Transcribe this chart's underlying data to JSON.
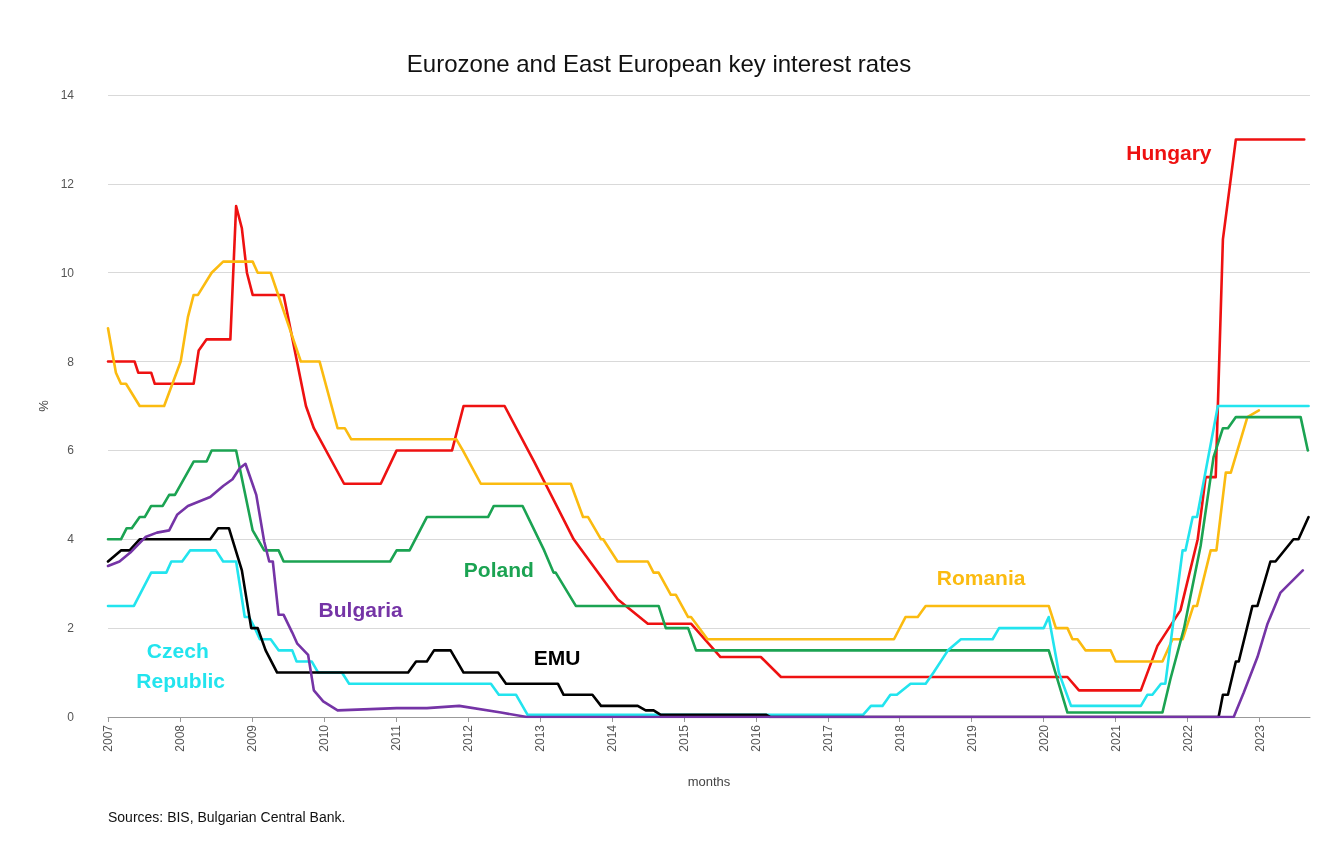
{
  "chart_data": {
    "type": "line",
    "title": "Eurozone and East European key interest rates",
    "xlabel": "months",
    "ylabel": "%",
    "xlim": [
      2007,
      2023.7
    ],
    "xticks": [
      2007,
      2008,
      2009,
      2010,
      2011,
      2012,
      2013,
      2014,
      2015,
      2016,
      2017,
      2018,
      2019,
      2020,
      2021,
      2022,
      2023
    ],
    "ylim": [
      0,
      14
    ],
    "yticks": [
      0,
      2,
      4,
      6,
      8,
      10,
      12,
      14
    ],
    "grid": "y",
    "legend": false,
    "marker": "none",
    "line_style": "solid",
    "annotations": [
      "Sources: BIS, Bulgarian Central Bank."
    ],
    "series": [
      {
        "name": "Hungary",
        "color": "#ee1111",
        "x": [
          2007.0,
          2007.37,
          2007.42,
          2007.6,
          2007.65,
          2008.19,
          2008.26,
          2008.37,
          2008.7,
          2008.78,
          2008.86,
          2008.93,
          2009.01,
          2009.44,
          2009.75,
          2009.86,
          2010.28,
          2010.79,
          2011.01,
          2011.78,
          2011.94,
          2012.51,
          2012.92,
          2013.47,
          2014.08,
          2014.5,
          2015.1,
          2015.51,
          2016.07,
          2016.35,
          2020.33,
          2020.49,
          2021.35,
          2021.58,
          2021.9,
          2022.14,
          2022.25,
          2022.39,
          2022.49,
          2022.67,
          2023.62
        ],
        "values": [
          8,
          8,
          7.75,
          7.75,
          7.5,
          7.5,
          8.25,
          8.5,
          8.5,
          11.5,
          11,
          10,
          9.5,
          9.5,
          7,
          6.5,
          5.25,
          5.25,
          6,
          6,
          7,
          7,
          5.75,
          4,
          2.65,
          2.1,
          2.1,
          1.35,
          1.35,
          0.9,
          0.9,
          0.6,
          0.6,
          1.6,
          2.4,
          4,
          5.4,
          5.4,
          10.75,
          13,
          13
        ]
      },
      {
        "name": "Romania",
        "color": "#fbbb10",
        "x": [
          2007.0,
          2007.11,
          2007.18,
          2007.25,
          2007.44,
          2007.78,
          2008.01,
          2008.11,
          2008.19,
          2008.25,
          2008.44,
          2008.6,
          2009.01,
          2009.08,
          2009.26,
          2009.68,
          2009.94,
          2010.19,
          2010.29,
          2010.38,
          2011.84,
          2011.93,
          2012.18,
          2013.43,
          2013.6,
          2013.67,
          2013.85,
          2013.88,
          2014.08,
          2014.5,
          2014.58,
          2014.65,
          2014.82,
          2014.89,
          2015.06,
          2015.1,
          2015.33,
          2017.92,
          2018.08,
          2018.25,
          2018.36,
          2020.07,
          2020.17,
          2020.33,
          2020.4,
          2020.47,
          2020.58,
          2020.93,
          2021.0,
          2021.65,
          2021.79,
          2021.93,
          2022.08,
          2022.13,
          2022.32,
          2022.4,
          2022.53,
          2022.6,
          2022.83,
          2022.99
        ],
        "values": [
          8.75,
          7.75,
          7.5,
          7.5,
          7,
          7,
          8,
          9,
          9.5,
          9.5,
          10,
          10.25,
          10.25,
          10,
          10,
          8,
          8,
          6.5,
          6.5,
          6.25,
          6.25,
          6,
          5.25,
          5.25,
          4.5,
          4.5,
          4,
          4,
          3.5,
          3.5,
          3.25,
          3.25,
          2.75,
          2.75,
          2.25,
          2.25,
          1.75,
          1.75,
          2.25,
          2.25,
          2.5,
          2.5,
          2,
          2,
          1.75,
          1.75,
          1.5,
          1.5,
          1.25,
          1.25,
          1.75,
          1.75,
          2.5,
          2.5,
          3.75,
          3.75,
          5.5,
          5.5,
          6.75,
          6.9
        ]
      },
      {
        "name": "Poland",
        "color": "#1ba352",
        "x": [
          2007.0,
          2007.18,
          2007.26,
          2007.33,
          2007.44,
          2007.51,
          2007.6,
          2007.76,
          2007.85,
          2007.93,
          2008.19,
          2008.37,
          2008.44,
          2008.78,
          2009.01,
          2009.17,
          2009.37,
          2009.44,
          2010.92,
          2011.01,
          2011.19,
          2011.43,
          2012.28,
          2012.36,
          2012.76,
          2013.06,
          2013.19,
          2013.22,
          2013.5,
          2014.65,
          2014.75,
          2015.06,
          2015.17,
          2020.07,
          2020.33,
          2021.65,
          2021.76,
          2021.95,
          2022.18,
          2022.36,
          2022.49,
          2022.56,
          2022.67,
          2023.57,
          2023.67
        ],
        "values": [
          4,
          4,
          4.25,
          4.25,
          4.5,
          4.5,
          4.75,
          4.75,
          5,
          5,
          5.75,
          5.75,
          6,
          6,
          4.2,
          3.75,
          3.75,
          3.5,
          3.5,
          3.75,
          3.75,
          4.5,
          4.5,
          4.75,
          4.75,
          3.75,
          3.25,
          3.25,
          2.5,
          2.5,
          2,
          2,
          1.5,
          1.5,
          0.1,
          0.1,
          0.85,
          2,
          3.85,
          5.85,
          6.5,
          6.5,
          6.75,
          6.75,
          6
        ]
      },
      {
        "name": "Czech Republic",
        "color": "#22e4ee",
        "x": [
          2007.0,
          2007.36,
          2007.6,
          2007.81,
          2007.88,
          2008.03,
          2008.14,
          2008.5,
          2008.6,
          2008.78,
          2008.9,
          2008.96,
          2009.04,
          2009.11,
          2009.26,
          2009.37,
          2009.56,
          2009.62,
          2009.83,
          2009.92,
          2010.25,
          2010.35,
          2012.32,
          2012.43,
          2012.67,
          2012.83,
          2017.49,
          2017.6,
          2017.76,
          2017.87,
          2017.96,
          2018.15,
          2018.36,
          2018.47,
          2018.67,
          2018.85,
          2019.29,
          2019.38,
          2020.0,
          2020.07,
          2020.21,
          2020.38,
          2021.35,
          2021.44,
          2021.51,
          2021.63,
          2021.69,
          2021.93,
          2021.97,
          2022.07,
          2022.13,
          2022.42,
          2023.68
        ],
        "values": [
          2.5,
          2.5,
          3.25,
          3.25,
          3.5,
          3.5,
          3.75,
          3.75,
          3.5,
          3.5,
          2.25,
          2.25,
          2,
          1.75,
          1.75,
          1.5,
          1.5,
          1.25,
          1.25,
          1,
          1,
          0.75,
          0.75,
          0.5,
          0.5,
          0.05,
          0.05,
          0.25,
          0.25,
          0.5,
          0.5,
          0.75,
          0.75,
          1,
          1.5,
          1.75,
          1.75,
          2,
          2,
          2.25,
          1,
          0.25,
          0.25,
          0.5,
          0.5,
          0.75,
          0.75,
          3.75,
          3.75,
          4.5,
          4.5,
          7,
          7
        ]
      },
      {
        "name": "EMU",
        "color": "#000000",
        "x": [
          2007.0,
          2007.18,
          2007.3,
          2007.44,
          2008.42,
          2008.53,
          2008.68,
          2008.86,
          2008.99,
          2009.08,
          2009.19,
          2009.35,
          2011.17,
          2011.28,
          2011.43,
          2011.53,
          2011.76,
          2011.94,
          2012.42,
          2012.53,
          2013.25,
          2013.33,
          2013.73,
          2013.85,
          2014.36,
          2014.47,
          2014.58,
          2014.68,
          2016.14,
          2016.2,
          2022.43,
          2022.49,
          2022.56,
          2022.67,
          2022.71,
          2022.9,
          2022.97,
          2023.15,
          2023.22,
          2023.47,
          2023.54,
          2023.68
        ],
        "values": [
          3.5,
          3.75,
          3.75,
          4,
          4,
          4.25,
          4.25,
          3.3,
          2,
          2,
          1.5,
          1,
          1,
          1.25,
          1.25,
          1.5,
          1.5,
          1,
          1,
          0.75,
          0.75,
          0.5,
          0.5,
          0.25,
          0.25,
          0.15,
          0.15,
          0.05,
          0.05,
          0,
          0,
          0.5,
          0.5,
          1.25,
          1.25,
          2.5,
          2.5,
          3.5,
          3.5,
          4,
          4,
          4.5
        ]
      },
      {
        "name": "Bulgaria",
        "color": "#7534a6",
        "x": [
          2007.0,
          2007.16,
          2007.31,
          2007.52,
          2007.68,
          2007.85,
          2007.96,
          2008.11,
          2008.42,
          2008.6,
          2008.73,
          2008.83,
          2008.91,
          2009.06,
          2009.17,
          2009.24,
          2009.29,
          2009.37,
          2009.44,
          2009.56,
          2009.63,
          2009.78,
          2009.86,
          2009.99,
          2010.19,
          2011.01,
          2011.43,
          2011.88,
          2012.46,
          2012.82,
          2022.64,
          2022.78,
          2022.97,
          2023.11,
          2023.29,
          2023.6
        ],
        "values": [
          3.4,
          3.5,
          3.7,
          4.05,
          4.15,
          4.2,
          4.55,
          4.75,
          4.95,
          5.2,
          5.35,
          5.6,
          5.7,
          5,
          3.95,
          3.5,
          3.5,
          2.3,
          2.3,
          1.9,
          1.65,
          1.4,
          0.6,
          0.35,
          0.15,
          0.2,
          0.2,
          0.25,
          0.1,
          0,
          0,
          0.55,
          1.35,
          2.1,
          2.8,
          3.3
        ]
      }
    ]
  }
}
